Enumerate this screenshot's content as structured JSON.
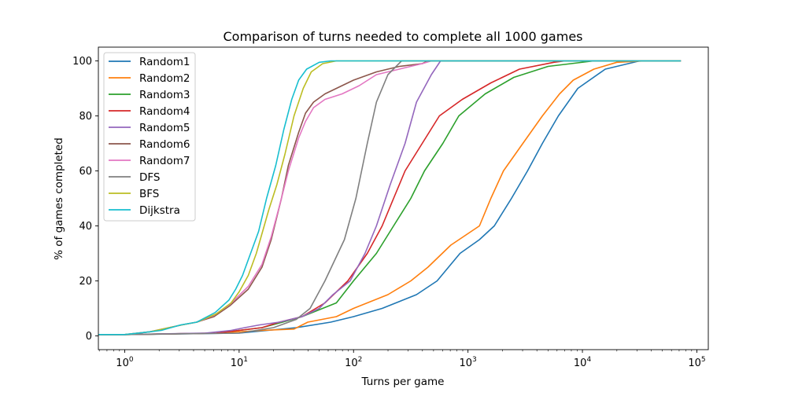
{
  "chart_data": {
    "type": "line",
    "title": "Comparison of turns needed to complete all 1000 games",
    "xlabel": "Turns per game",
    "ylabel": "% of games completed",
    "xscale": "log",
    "xlim_log10": [
      -0.23,
      5.1
    ],
    "ylim": [
      -5,
      105
    ],
    "yticks": [
      0,
      20,
      40,
      60,
      80,
      100
    ],
    "xticks": [
      {
        "exp": 0,
        "label_base": "10",
        "label_exp": "0"
      },
      {
        "exp": 1,
        "label_base": "10",
        "label_exp": "1"
      },
      {
        "exp": 2,
        "label_base": "10",
        "label_exp": "2"
      },
      {
        "exp": 3,
        "label_base": "10",
        "label_exp": "3"
      },
      {
        "exp": 4,
        "label_base": "10",
        "label_exp": "4"
      },
      {
        "exp": 5,
        "label_base": "10",
        "label_exp": "5"
      }
    ],
    "grid": false,
    "legend_position": "top-left",
    "series_note": "points are [log10(turns), percent]",
    "series": [
      {
        "name": "Random1",
        "color": "#1f77b4",
        "points": [
          [
            -0.23,
            0.5
          ],
          [
            0,
            0.5
          ],
          [
            1.0,
            1
          ],
          [
            1.5,
            3
          ],
          [
            1.8,
            5
          ],
          [
            2.0,
            7
          ],
          [
            2.25,
            10
          ],
          [
            2.55,
            15
          ],
          [
            2.73,
            20
          ],
          [
            2.93,
            30
          ],
          [
            3.1,
            35
          ],
          [
            3.23,
            40
          ],
          [
            3.38,
            50
          ],
          [
            3.52,
            60
          ],
          [
            3.65,
            70
          ],
          [
            3.79,
            80
          ],
          [
            3.96,
            90
          ],
          [
            4.2,
            97
          ],
          [
            4.5,
            100
          ],
          [
            4.86,
            100
          ]
        ]
      },
      {
        "name": "Random2",
        "color": "#ff7f0e",
        "points": [
          [
            -0.23,
            0.5
          ],
          [
            0,
            0.5
          ],
          [
            0.8,
            1
          ],
          [
            1.2,
            2
          ],
          [
            1.48,
            2.5
          ],
          [
            1.6,
            5
          ],
          [
            1.85,
            7
          ],
          [
            2.0,
            10
          ],
          [
            2.3,
            15
          ],
          [
            2.5,
            20
          ],
          [
            2.65,
            25
          ],
          [
            2.85,
            33
          ],
          [
            3.1,
            40
          ],
          [
            3.2,
            50
          ],
          [
            3.31,
            60
          ],
          [
            3.48,
            70
          ],
          [
            3.65,
            80
          ],
          [
            3.8,
            88
          ],
          [
            3.92,
            93
          ],
          [
            4.1,
            97
          ],
          [
            4.3,
            99.5
          ],
          [
            4.55,
            100
          ],
          [
            4.86,
            100
          ]
        ]
      },
      {
        "name": "Random3",
        "color": "#2ca02c",
        "points": [
          [
            -0.23,
            0.5
          ],
          [
            0,
            0.5
          ],
          [
            0.8,
            1
          ],
          [
            1.0,
            2
          ],
          [
            1.2,
            3
          ],
          [
            1.38,
            5
          ],
          [
            1.55,
            7
          ],
          [
            1.85,
            12
          ],
          [
            2.0,
            20
          ],
          [
            2.2,
            30
          ],
          [
            2.35,
            40
          ],
          [
            2.5,
            50
          ],
          [
            2.62,
            60
          ],
          [
            2.78,
            70
          ],
          [
            2.92,
            80
          ],
          [
            3.15,
            88
          ],
          [
            3.4,
            94
          ],
          [
            3.7,
            98
          ],
          [
            4.1,
            100
          ],
          [
            4.86,
            100
          ]
        ]
      },
      {
        "name": "Random4",
        "color": "#d62728",
        "points": [
          [
            -0.23,
            0.5
          ],
          [
            0,
            0.5
          ],
          [
            0.8,
            1
          ],
          [
            1.0,
            2
          ],
          [
            1.2,
            3
          ],
          [
            1.35,
            5
          ],
          [
            1.55,
            7
          ],
          [
            1.75,
            12
          ],
          [
            1.95,
            20
          ],
          [
            2.12,
            30
          ],
          [
            2.25,
            40
          ],
          [
            2.35,
            50
          ],
          [
            2.45,
            60
          ],
          [
            2.6,
            70
          ],
          [
            2.75,
            80
          ],
          [
            2.95,
            86
          ],
          [
            3.2,
            92
          ],
          [
            3.45,
            97
          ],
          [
            3.75,
            99.5
          ],
          [
            3.85,
            100
          ],
          [
            4.86,
            100
          ]
        ]
      },
      {
        "name": "Random5",
        "color": "#9467bd",
        "points": [
          [
            -0.23,
            0.5
          ],
          [
            0,
            0.5
          ],
          [
            0.7,
            1
          ],
          [
            0.93,
            2
          ],
          [
            1.05,
            3
          ],
          [
            1.18,
            4
          ],
          [
            1.35,
            5
          ],
          [
            1.55,
            7
          ],
          [
            1.7,
            10
          ],
          [
            1.82,
            15
          ],
          [
            1.97,
            20
          ],
          [
            2.1,
            30
          ],
          [
            2.2,
            40
          ],
          [
            2.32,
            55
          ],
          [
            2.45,
            70
          ],
          [
            2.55,
            85
          ],
          [
            2.68,
            95
          ],
          [
            2.76,
            100
          ],
          [
            4.86,
            100
          ]
        ]
      },
      {
        "name": "Random6",
        "color": "#8c564b",
        "points": [
          [
            -0.23,
            0.5
          ],
          [
            0,
            0.5
          ],
          [
            0.22,
            1.5
          ],
          [
            0.5,
            4
          ],
          [
            0.63,
            5
          ],
          [
            0.78,
            7
          ],
          [
            0.92,
            11
          ],
          [
            1.08,
            17
          ],
          [
            1.2,
            25
          ],
          [
            1.28,
            35
          ],
          [
            1.37,
            50
          ],
          [
            1.43,
            62
          ],
          [
            1.52,
            74
          ],
          [
            1.58,
            81
          ],
          [
            1.65,
            85
          ],
          [
            1.75,
            88
          ],
          [
            1.85,
            90
          ],
          [
            2.0,
            93
          ],
          [
            2.2,
            96
          ],
          [
            2.4,
            98
          ],
          [
            2.6,
            99
          ],
          [
            2.65,
            100
          ],
          [
            4.86,
            100
          ]
        ]
      },
      {
        "name": "Random7",
        "color": "#e377c2",
        "points": [
          [
            -0.23,
            0.5
          ],
          [
            0,
            0.5
          ],
          [
            0.22,
            1.5
          ],
          [
            0.5,
            4
          ],
          [
            0.63,
            5
          ],
          [
            0.78,
            7.5
          ],
          [
            0.92,
            11.5
          ],
          [
            1.08,
            18
          ],
          [
            1.2,
            26
          ],
          [
            1.28,
            36
          ],
          [
            1.37,
            50
          ],
          [
            1.43,
            60
          ],
          [
            1.52,
            72
          ],
          [
            1.58,
            78
          ],
          [
            1.65,
            83
          ],
          [
            1.75,
            86
          ],
          [
            1.9,
            88
          ],
          [
            2.05,
            91
          ],
          [
            2.2,
            95
          ],
          [
            2.4,
            97
          ],
          [
            2.6,
            99
          ],
          [
            2.68,
            100
          ],
          [
            4.86,
            100
          ]
        ]
      },
      {
        "name": "DFS",
        "color": "#7f7f7f",
        "points": [
          [
            -0.23,
            0.5
          ],
          [
            0,
            0.5
          ],
          [
            1.0,
            1
          ],
          [
            1.3,
            3
          ],
          [
            1.5,
            6
          ],
          [
            1.62,
            10
          ],
          [
            1.75,
            20
          ],
          [
            1.92,
            35
          ],
          [
            2.02,
            50
          ],
          [
            2.12,
            70
          ],
          [
            2.2,
            85
          ],
          [
            2.3,
            95
          ],
          [
            2.42,
            100
          ],
          [
            4.86,
            100
          ]
        ]
      },
      {
        "name": "BFS",
        "color": "#bcbd22",
        "points": [
          [
            -0.23,
            0.5
          ],
          [
            0,
            0.5
          ],
          [
            0.22,
            1.5
          ],
          [
            0.5,
            4
          ],
          [
            0.63,
            5
          ],
          [
            0.8,
            8
          ],
          [
            0.93,
            12
          ],
          [
            1.0,
            16
          ],
          [
            1.08,
            22
          ],
          [
            1.15,
            30
          ],
          [
            1.26,
            46
          ],
          [
            1.33,
            55
          ],
          [
            1.4,
            66
          ],
          [
            1.48,
            80
          ],
          [
            1.56,
            90
          ],
          [
            1.63,
            96
          ],
          [
            1.73,
            99
          ],
          [
            1.85,
            100
          ],
          [
            4.86,
            100
          ]
        ]
      },
      {
        "name": "Dijkstra",
        "color": "#17becf",
        "points": [
          [
            -0.23,
            0.5
          ],
          [
            0,
            0.5
          ],
          [
            0.22,
            1.5
          ],
          [
            0.32,
            2
          ],
          [
            0.49,
            4
          ],
          [
            0.63,
            5
          ],
          [
            0.79,
            8.5
          ],
          [
            0.91,
            13
          ],
          [
            0.97,
            17
          ],
          [
            1.03,
            22
          ],
          [
            1.1,
            30
          ],
          [
            1.17,
            38
          ],
          [
            1.24,
            50
          ],
          [
            1.32,
            62
          ],
          [
            1.39,
            75
          ],
          [
            1.46,
            86
          ],
          [
            1.52,
            93
          ],
          [
            1.59,
            97
          ],
          [
            1.7,
            99.5
          ],
          [
            1.8,
            100
          ],
          [
            4.86,
            100
          ]
        ]
      }
    ]
  }
}
